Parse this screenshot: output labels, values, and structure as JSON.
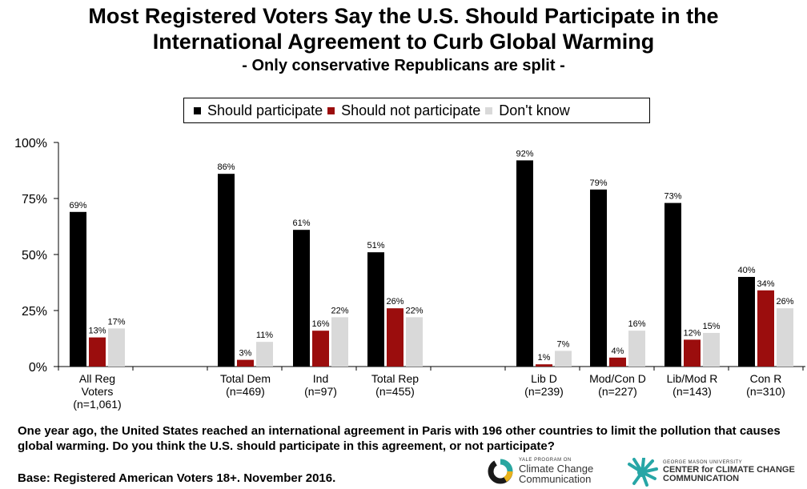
{
  "header": {
    "title_line1": "Most Registered Voters Say the U.S. Should Participate in the",
    "title_line2": "International Agreement to Curb Global Warming",
    "subtitle": "- Only conservative Republicans are split -"
  },
  "chart_data": {
    "type": "bar",
    "ylim": [
      0,
      100
    ],
    "yticks": [
      "0%",
      "25%",
      "50%",
      "75%",
      "100%"
    ],
    "grid": false,
    "legend_position": "top",
    "categories": [
      [
        "All Reg",
        "Voters",
        "(n=1,061)"
      ],
      [
        "Total Dem",
        "(n=469)"
      ],
      [
        "Ind",
        "(n=97)"
      ],
      [
        "Total Rep",
        "(n=455)"
      ],
      [
        "Lib D",
        "(n=239)"
      ],
      [
        "Mod/Con D",
        "(n=227)"
      ],
      [
        "Lib/Mod R",
        "(n=143)"
      ],
      [
        "Con R",
        "(n=310)"
      ]
    ],
    "series": [
      {
        "name": "Should participate",
        "color": "#000000",
        "values": [
          69,
          86,
          61,
          51,
          92,
          79,
          73,
          40
        ]
      },
      {
        "name": "Should not participate",
        "color": "#9b0d0d",
        "values": [
          13,
          3,
          16,
          26,
          1,
          4,
          12,
          34
        ]
      },
      {
        "name": "Don't know",
        "color": "#d9d9d9",
        "values": [
          17,
          11,
          22,
          22,
          7,
          16,
          15,
          26
        ]
      }
    ]
  },
  "footer": {
    "question": "One year ago, the United States reached an international agreement in Paris with 196 other countries to limit the pollution that causes global warming. Do you think the U.S. should participate in this agreement, or not participate?",
    "base": "Base: Registered American Voters 18+. November 2016.",
    "logo1_small": "YALE PROGRAM ON",
    "logo1_line1": "Climate Change",
    "logo1_line2": "Communication",
    "logo2_small": "GEORGE MASON UNIVERSITY",
    "logo2_line1": "CENTER for CLIMATE CHANGE",
    "logo2_line2": "COMMUNICATION"
  }
}
